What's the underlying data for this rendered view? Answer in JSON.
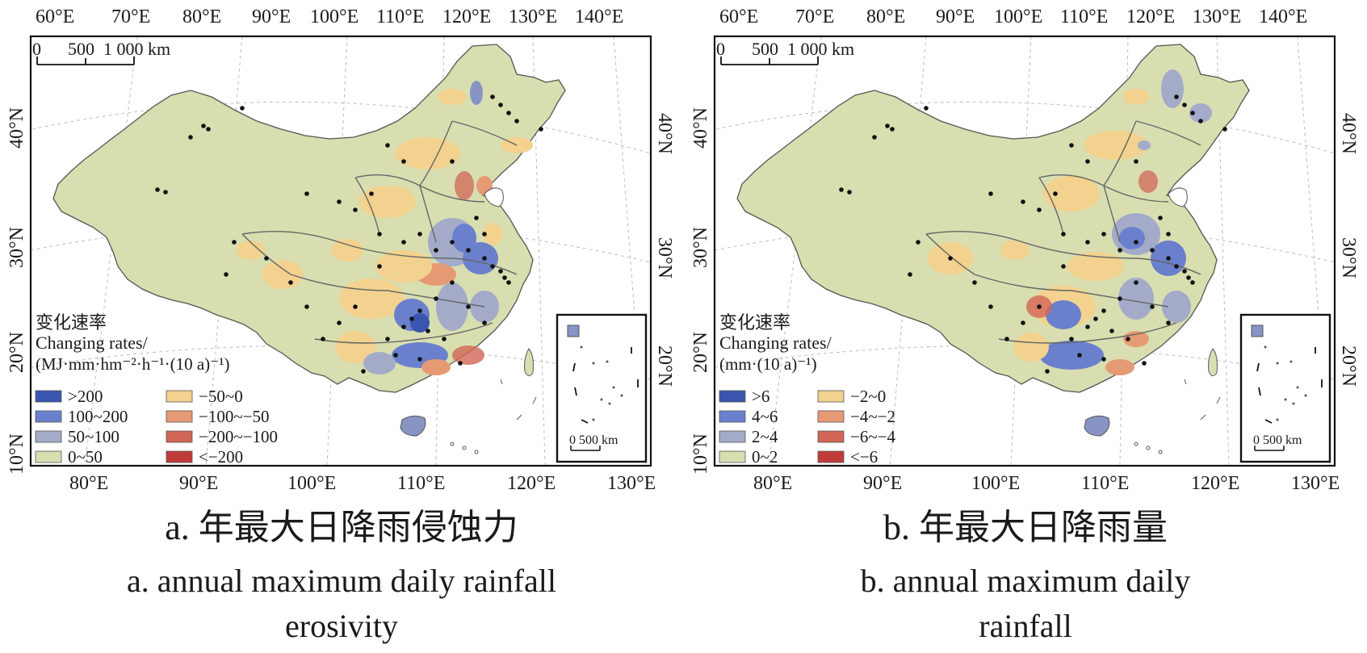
{
  "panels": [
    {
      "id": "a",
      "top_lon_labels": [
        "60°E",
        "70°E",
        "80°E",
        "90°E",
        "100°E",
        "110°E",
        "120°E",
        "130°E",
        "140°E"
      ],
      "bottom_lon_labels": [
        "80°E",
        "90°E",
        "100°E",
        "110°E",
        "120°E",
        "130°E"
      ],
      "left_lat_labels": [
        "40°N",
        "30°N",
        "20°N",
        "10°N"
      ],
      "right_lat_labels": [
        "40°N",
        "30°N",
        "20°N"
      ],
      "scale_bar": {
        "ticks": [
          "0",
          "500",
          "1 000 km"
        ]
      },
      "inset_scale": "0   500 km",
      "legend": {
        "title_cn": "变化速率",
        "title_en": "Changing rates/",
        "unit": "(MJ·mm·hm⁻²·h⁻¹·(10 a)⁻¹)",
        "items": [
          {
            "label": ">200",
            "color": "#3a55b0"
          },
          {
            "label": "100~200",
            "color": "#6a80cc"
          },
          {
            "label": "50~100",
            "color": "#a3abc9"
          },
          {
            "label": "0~50",
            "color": "#d8deb0"
          },
          {
            "label": "−50~0",
            "color": "#f2d28e"
          },
          {
            "label": "−100~−50",
            "color": "#e69a74"
          },
          {
            "label": "−200~−100",
            "color": "#d26656"
          },
          {
            "label": "<−200",
            "color": "#c23b3b"
          }
        ]
      },
      "caption_cn": "a. 年最大日降雨侵蚀力",
      "caption_en_1": "a. annual maximum daily rainfall",
      "caption_en_2": "erosivity"
    },
    {
      "id": "b",
      "top_lon_labels": [
        "60°E",
        "70°E",
        "80°E",
        "90°E",
        "100°E",
        "110°E",
        "120°E",
        "130°E",
        "140°E"
      ],
      "bottom_lon_labels": [
        "80°E",
        "90°E",
        "100°E",
        "110°E",
        "120°E",
        "130°E"
      ],
      "left_lat_labels": [
        "40°N",
        "30°N",
        "20°N",
        "10°N"
      ],
      "right_lat_labels": [
        "40°N",
        "30°N",
        "20°N"
      ],
      "scale_bar": {
        "ticks": [
          "0",
          "500",
          "1 000 km"
        ]
      },
      "inset_scale": "0   500 km",
      "legend": {
        "title_cn": "变化速率",
        "title_en": "Changing rates/",
        "unit": "(mm·(10 a)⁻¹)",
        "items": [
          {
            "label": ">6",
            "color": "#3a55b0"
          },
          {
            "label": "4~6",
            "color": "#6a80cc"
          },
          {
            "label": "2~4",
            "color": "#a3abc9"
          },
          {
            "label": "0~2",
            "color": "#d8deb0"
          },
          {
            "label": "−2~0",
            "color": "#f2d28e"
          },
          {
            "label": "−4~−2",
            "color": "#e69a74"
          },
          {
            "label": "−6~−4",
            "color": "#d26656"
          },
          {
            "label": "<−6",
            "color": "#c23b3b"
          }
        ]
      },
      "caption_cn": "b. 年最大日降雨量",
      "caption_en_1": "b. annual maximum daily",
      "caption_en_2": "rainfall"
    }
  ]
}
